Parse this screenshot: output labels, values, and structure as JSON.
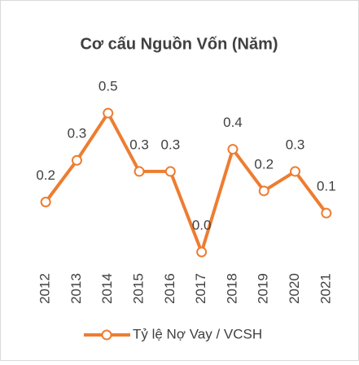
{
  "chart_data": {
    "type": "line",
    "title": "Cơ cấu Nguồn Vốn (Năm)",
    "categories": [
      "2012",
      "2013",
      "2014",
      "2015",
      "2016",
      "2017",
      "2018",
      "2019",
      "2020",
      "2021"
    ],
    "series": [
      {
        "name": "Tỷ lệ Nợ Vay / VCSH",
        "color": "#ed7d31",
        "values": [
          0.18,
          0.33,
          0.5,
          0.29,
          0.29,
          0.0,
          0.37,
          0.22,
          0.29,
          0.14
        ],
        "value_labels": [
          "0.2",
          "0.3",
          "0.5",
          "0.3",
          "0.3",
          "0.0",
          "0.4",
          "0.2",
          "0.3",
          "0.1"
        ]
      }
    ],
    "ylim": [
      0,
      0.6
    ],
    "grid": false,
    "legend": "bottom"
  }
}
